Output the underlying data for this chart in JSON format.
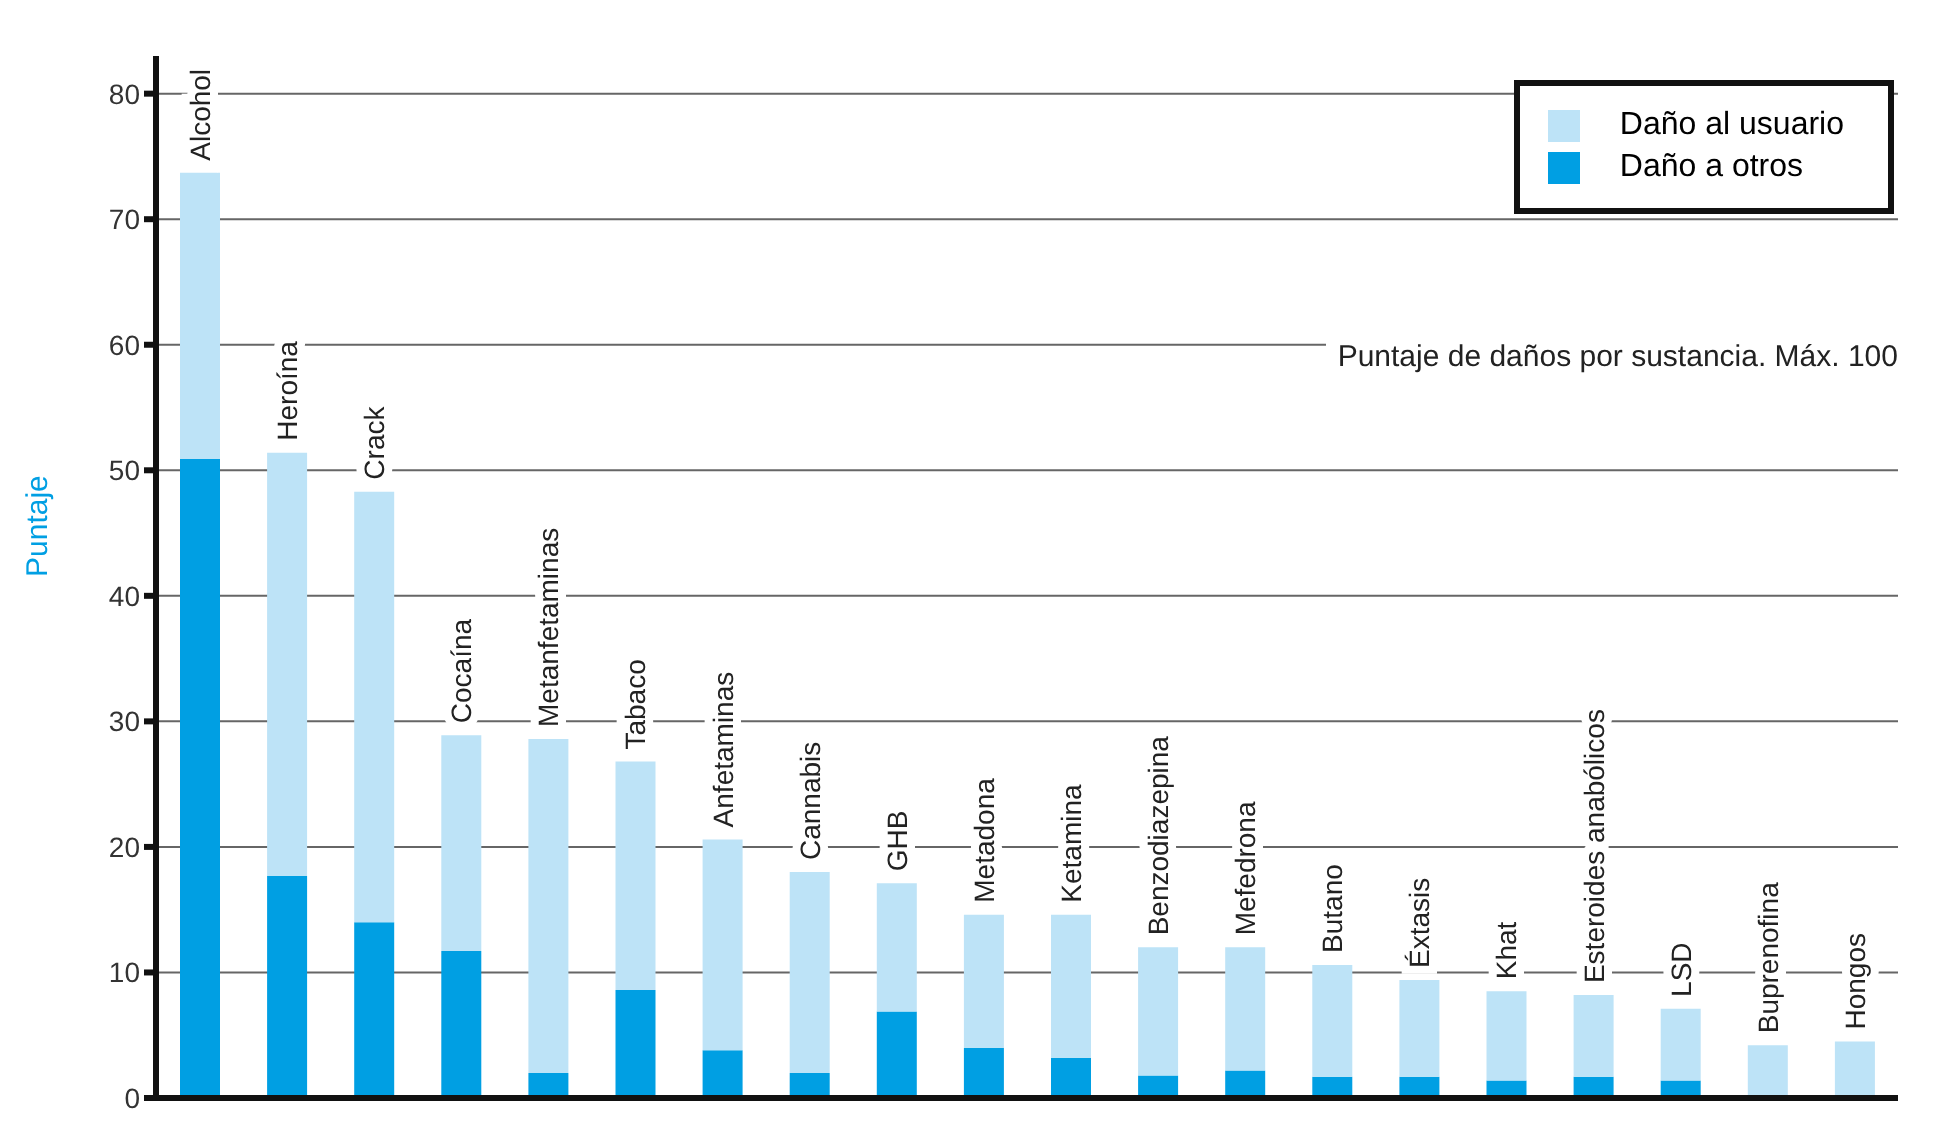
{
  "chart_data": {
    "type": "bar",
    "stacked": true,
    "ylabel": "Puntaje",
    "annotations": [
      "Puntaje de daños por sustancia. Máx. 100"
    ],
    "categories": [
      "Alcohol",
      "Heroína",
      "Crack",
      "Cocaína",
      "Metanfetaminas",
      "Tabaco",
      "Anfetaminas",
      "Cannabis",
      "GHB",
      "Metadona",
      "Ketamina",
      "Benzodiazepina",
      "Mefedrona",
      "Butano",
      "Éxtasis",
      "Khat",
      "Esteroides anabólicos",
      "LSD",
      "Buprenofina",
      "Hongos"
    ],
    "series": [
      {
        "name": "Daño a otros",
        "color": "#009fe3",
        "values": [
          50.9,
          17.7,
          14.0,
          11.7,
          2.0,
          8.6,
          3.8,
          2.0,
          6.9,
          4.0,
          3.2,
          1.8,
          2.2,
          1.7,
          1.7,
          1.4,
          1.7,
          1.4,
          0,
          0
        ]
      },
      {
        "name": "Daño al usuario",
        "color": "#bde3f7",
        "values": [
          22.8,
          33.7,
          34.3,
          17.2,
          26.6,
          18.2,
          16.8,
          16.0,
          10.2,
          10.6,
          11.4,
          10.2,
          9.8,
          8.9,
          7.7,
          7.1,
          6.5,
          5.7,
          4.2,
          4.5
        ]
      }
    ],
    "ylim": [
      0,
      83
    ],
    "yticks": [
      0,
      10,
      20,
      30,
      40,
      50,
      60,
      70,
      80
    ],
    "grid": "y",
    "legend": "top right"
  }
}
